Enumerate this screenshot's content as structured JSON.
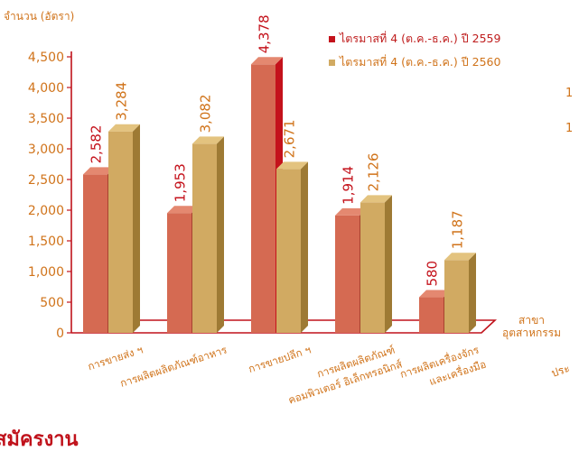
{
  "chart_data": {
    "type": "bar",
    "ylabel": "จำนวน (อัตรา)",
    "xlabel_lines": [
      "สาขา",
      "อุตสาหกรรม"
    ],
    "categories": [
      [
        "การขายส่ง ฯ"
      ],
      [
        "การผลิตผลิตภัณฑ์อาหาร"
      ],
      [
        "การขายปลีก ฯ"
      ],
      [
        "การผลิตผลิตภัณฑ์",
        "คอมพิวเตอร์ อิเล็กทรอนิกส์"
      ],
      [
        "การผลิตเครื่องจักร",
        "และเครื่องมือ"
      ]
    ],
    "series": [
      {
        "name": "ไตรมาสที่ 4 (ต.ค.-ธ.ค.) ปี 2559",
        "values": [
          2582,
          1953,
          4378,
          1914,
          580
        ]
      },
      {
        "name": "ไตรมาสที่ 4 (ต.ค.-ธ.ค.) ปี 2560",
        "values": [
          3284,
          3082,
          2671,
          2126,
          1187
        ]
      }
    ],
    "value_labels": [
      [
        "2,582",
        "1,953",
        "4,378",
        "1,914",
        "580"
      ],
      [
        "3,284",
        "3,082",
        "2,671",
        "2,126",
        "1,187"
      ]
    ],
    "yticks": [
      "0",
      "500",
      "1,000",
      "1,500",
      "2,000",
      "2,500",
      "3,000",
      "3,500",
      "4,000",
      "4,500"
    ],
    "ylim": [
      0,
      4500
    ],
    "legend_position": "top-right",
    "grid": false
  },
  "cropped_text": {
    "bottom_heading": "สมัครงาน",
    "right_edge_1": "1",
    "right_edge_2": "1",
    "right_edge_3": "ประ"
  },
  "colors": {
    "series1_front": "#d56a52",
    "series1_side": "#a8432f",
    "series1_top": "#e48870",
    "series1_highlight": "#c4121b",
    "series2_front": "#d1aa62",
    "series2_side": "#9e7a34",
    "series2_top": "#e3c37f",
    "axis": "#c0121b",
    "text_orange": "#d0731a",
    "legend_text": "#bf1d1d",
    "heading": "#c0121b"
  }
}
